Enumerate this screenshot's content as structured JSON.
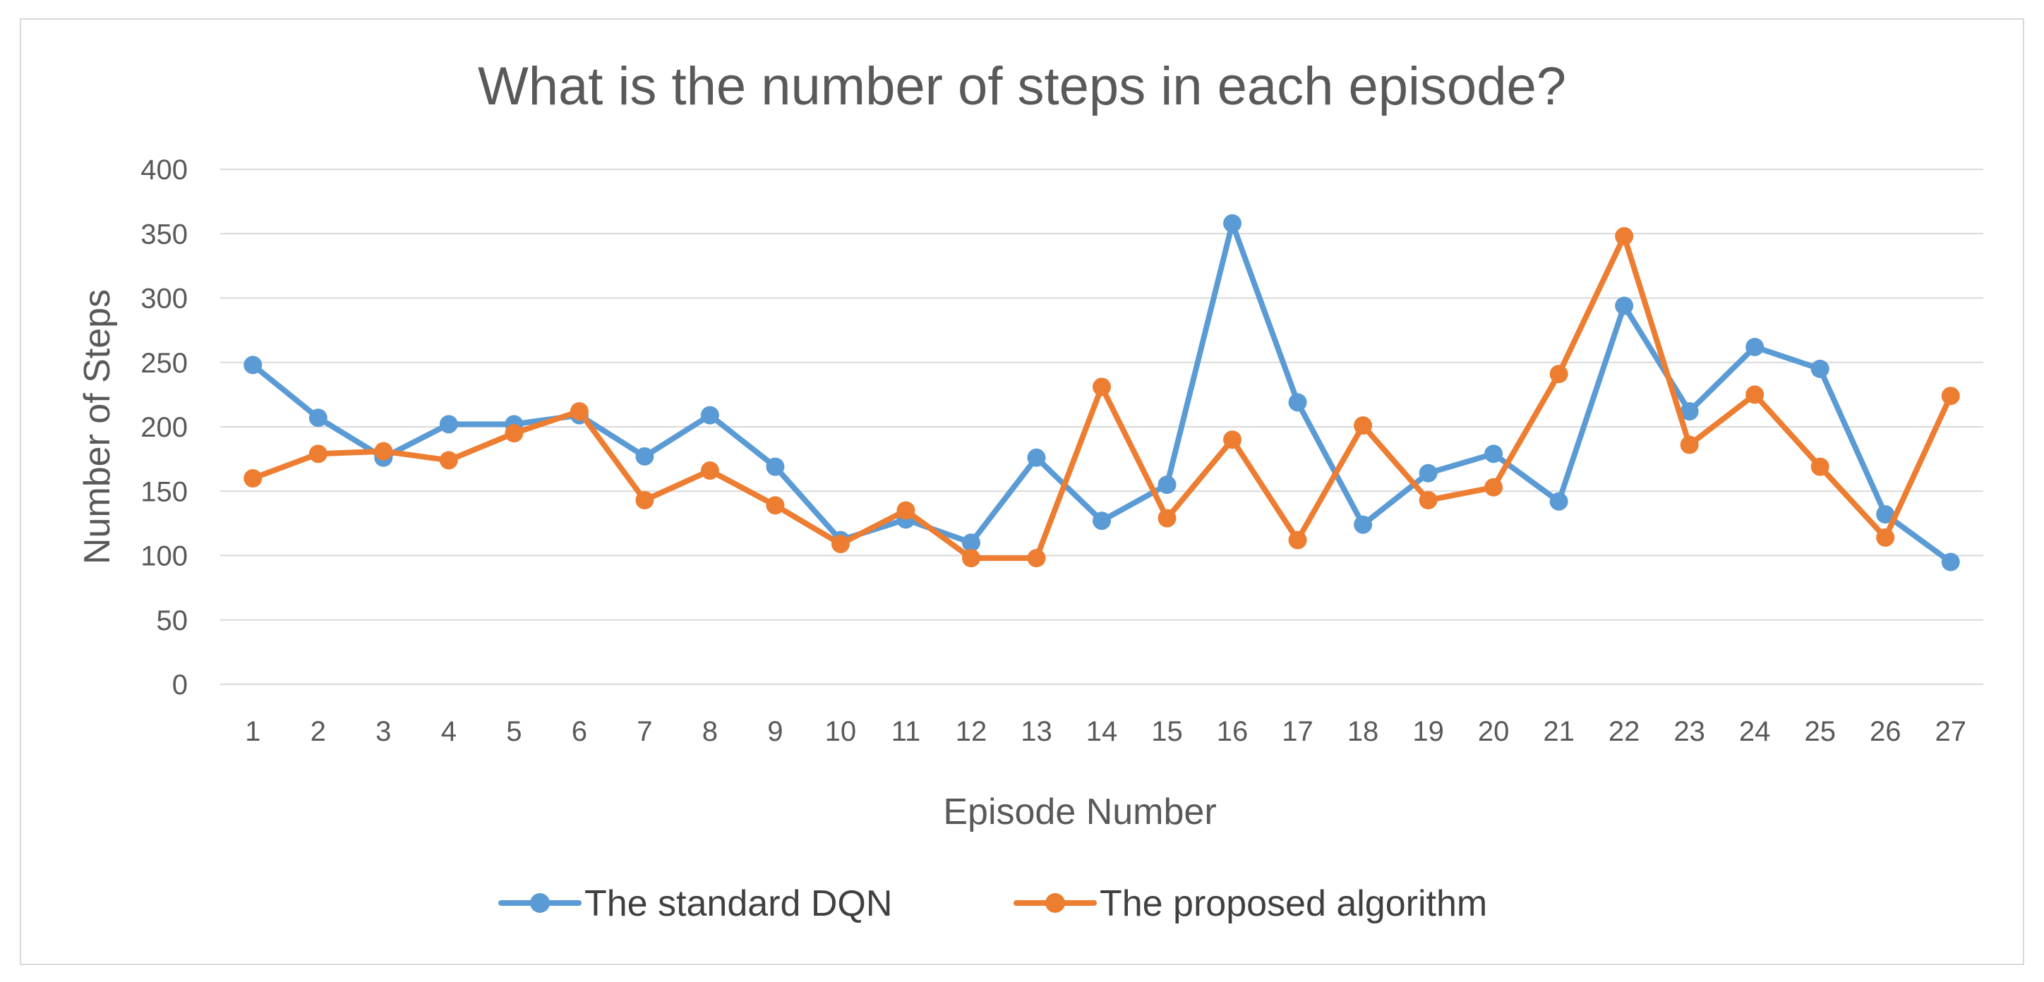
{
  "chart_data": {
    "type": "line",
    "title": "What is the number of steps in each episode?",
    "xlabel": "Episode Number",
    "ylabel": "Number of Steps",
    "ylim": [
      0,
      400
    ],
    "yticks": [
      "0",
      "50",
      "100",
      "150",
      "200",
      "250",
      "300",
      "350",
      "400"
    ],
    "categories": [
      "1",
      "2",
      "3",
      "4",
      "5",
      "6",
      "7",
      "8",
      "9",
      "10",
      "11",
      "12",
      "13",
      "14",
      "15",
      "16",
      "17",
      "18",
      "19",
      "20",
      "21",
      "22",
      "23",
      "24",
      "25",
      "26",
      "27"
    ],
    "grid": true,
    "legend_position": "bottom",
    "series": [
      {
        "name": "The standard DQN",
        "color": "#5b9bd5",
        "values": [
          248,
          207,
          176,
          202,
          202,
          209,
          177,
          209,
          169,
          112,
          128,
          110,
          176,
          127,
          155,
          358,
          219,
          124,
          164,
          179,
          142,
          294,
          212,
          262,
          245,
          132,
          95
        ]
      },
      {
        "name": "The proposed algorithm",
        "color": "#ed7d31",
        "values": [
          160,
          179,
          181,
          174,
          195,
          212,
          143,
          166,
          139,
          109,
          135,
          98,
          98,
          231,
          129,
          190,
          112,
          201,
          143,
          153,
          241,
          348,
          186,
          225,
          169,
          114,
          224
        ]
      }
    ]
  }
}
